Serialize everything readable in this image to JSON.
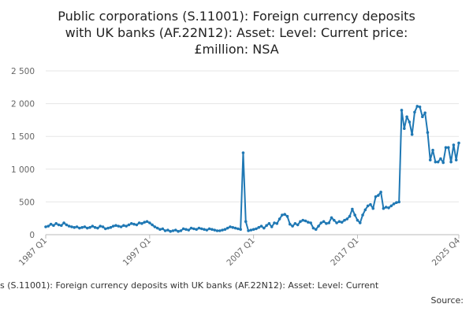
{
  "chart_data": {
    "type": "line",
    "title_lines": [
      "Public corporations (S.11001): Foreign currency deposits",
      "with UK banks (AF.22N12): Asset: Level: Current price:",
      "£million: NSA"
    ],
    "xlabel": "",
    "ylabel": "",
    "ylim": [
      0,
      2500
    ],
    "yticks": [
      0,
      500,
      1000,
      1500,
      2000,
      2500
    ],
    "ytick_labels": [
      "0",
      "500",
      "1 000",
      "1 500",
      "2 000",
      "2 500"
    ],
    "xticks": [
      "1987 Q1",
      "1997 Q1",
      "2007 Q1",
      "2017 Q1",
      "2025 Q4"
    ],
    "grid": "horizontal",
    "legend": "bottom",
    "legend_text": "s (S.11001): Foreign currency deposits with UK banks (AF.22N12): Asset: Level: Current",
    "source_label": "Source:",
    "color": "#1f78b4",
    "series": [
      {
        "values": [
          120,
          130,
          160,
          140,
          170,
          150,
          140,
          180,
          150,
          130,
          120,
          110,
          120,
          100,
          110,
          120,
          100,
          110,
          130,
          110,
          100,
          130,
          120,
          90,
          100,
          110,
          130,
          140,
          130,
          120,
          140,
          130,
          150,
          170,
          160,
          150,
          180,
          170,
          190,
          200,
          180,
          150,
          120,
          100,
          80,
          90,
          60,
          70,
          50,
          60,
          70,
          50,
          60,
          90,
          80,
          70,
          100,
          90,
          80,
          100,
          90,
          80,
          70,
          90,
          80,
          70,
          60,
          60,
          70,
          80,
          100,
          120,
          110,
          100,
          90,
          80,
          1250,
          200,
          60,
          70,
          80,
          90,
          110,
          130,
          100,
          140,
          170,
          120,
          180,
          170,
          240,
          300,
          310,
          280,
          160,
          130,
          170,
          150,
          200,
          220,
          210,
          190,
          180,
          100,
          80,
          130,
          180,
          200,
          170,
          180,
          260,
          220,
          180,
          200,
          190,
          220,
          240,
          280,
          390,
          300,
          220,
          180,
          300,
          380,
          440,
          460,
          400,
          580,
          600,
          650,
          400,
          420,
          410,
          440,
          470,
          490,
          500,
          1900,
          1620,
          1800,
          1720,
          1530,
          1870,
          1960,
          1950,
          1800,
          1860,
          1560,
          1140,
          1290,
          1110,
          1110,
          1160,
          1100,
          1330,
          1330,
          1110,
          1370,
          1140,
          1400
        ]
      }
    ]
  }
}
